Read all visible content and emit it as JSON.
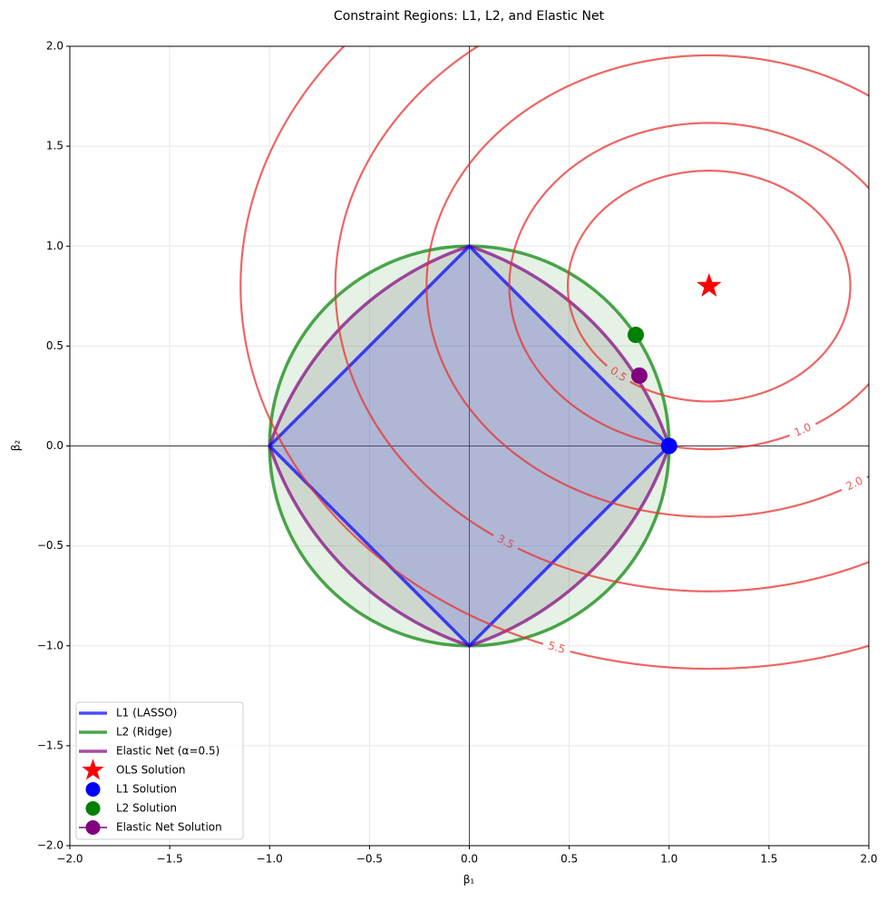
{
  "chart_data": {
    "type": "constraint-contour",
    "title": "Constraint Regions: L1, L2, and Elastic Net",
    "xlabel": "β₁",
    "ylabel": "β₂",
    "xlim": [
      -2,
      2
    ],
    "ylim": [
      -2,
      2
    ],
    "xticks": [
      {
        "value": -2,
        "label": "−2.0"
      },
      {
        "value": -1.5,
        "label": "−1.5"
      },
      {
        "value": -1,
        "label": "−1.0"
      },
      {
        "value": -0.5,
        "label": "−0.5"
      },
      {
        "value": 0,
        "label": "0.0"
      },
      {
        "value": 0.5,
        "label": "0.5"
      },
      {
        "value": 1,
        "label": "1.0"
      },
      {
        "value": 1.5,
        "label": "1.5"
      },
      {
        "value": 2,
        "label": "2.0"
      }
    ],
    "yticks": [
      {
        "value": -2,
        "label": "−2.0"
      },
      {
        "value": -1.5,
        "label": "−1.5"
      },
      {
        "value": -1,
        "label": "−1.0"
      },
      {
        "value": -0.5,
        "label": "−0.5"
      },
      {
        "value": 0,
        "label": "0.0"
      },
      {
        "value": 0.5,
        "label": "0.5"
      },
      {
        "value": 1,
        "label": "1.0"
      },
      {
        "value": 1.5,
        "label": "1.5"
      },
      {
        "value": 2,
        "label": "2.0"
      }
    ],
    "grid": true,
    "zero_lines": true,
    "legend": "lower left",
    "constraint_t": 1,
    "alpha": 0.5,
    "regions": [
      {
        "name": "L1 (LASSO)",
        "kind": "l1",
        "color": "#0000ff",
        "fill": "#0000ff"
      },
      {
        "name": "L2 (Ridge)",
        "kind": "l2",
        "color": "#008000",
        "fill": "#008000"
      },
      {
        "name": "Elastic Net (α=0.5)",
        "kind": "elastic",
        "color": "#800080",
        "fill": "#999999"
      }
    ],
    "contours": {
      "color": "#e8312f",
      "center": [
        1.2,
        0.8
      ],
      "weights": [
        1,
        1.5
      ],
      "levels": [
        0.5,
        {
          "value": 1,
          "label": "1.0"
        },
        {
          "value": 2,
          "label": "2.0"
        },
        3.5,
        5.5
      ]
    },
    "points": [
      {
        "name": "OLS Solution",
        "marker": "star",
        "color": "#ff0000",
        "x": 1.2,
        "y": 0.8
      },
      {
        "name": "L1 Solution",
        "marker": "circle",
        "color": "#0000ff",
        "x": 1,
        "y": 0
      },
      {
        "name": "L2 Solution",
        "marker": "circle",
        "color": "#008000",
        "x": 0.833,
        "y": 0.556
      },
      {
        "name": "Elastic Net Solution",
        "marker": "circle-line",
        "color": "#800080",
        "x": 0.851,
        "y": 0.352
      }
    ]
  }
}
